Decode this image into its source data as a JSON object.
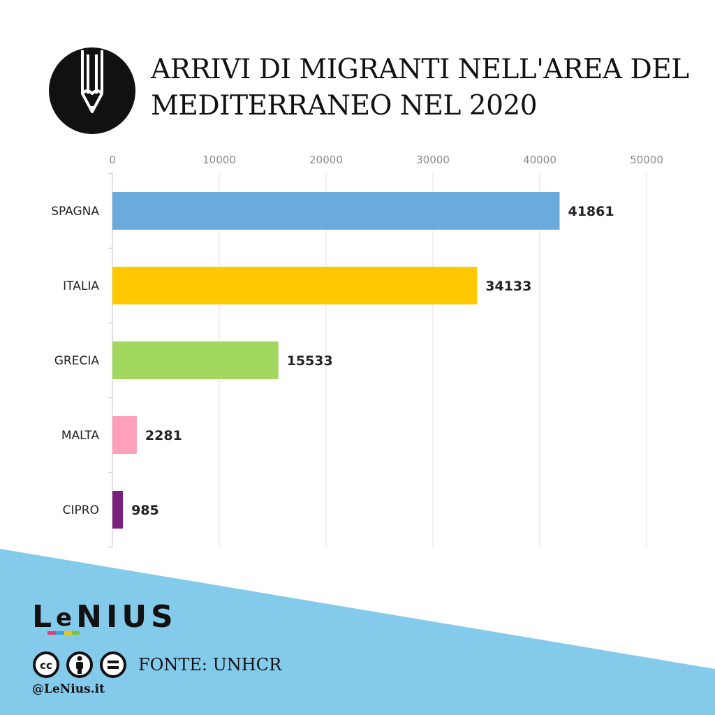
{
  "colors": {
    "background": "#ffffff",
    "wave": "#84cbeb",
    "axis_text": "#8a8a8a",
    "grid": "#e3e3e3",
    "label_text": "#222222"
  },
  "header": {
    "logo_icon": "pencil-icon",
    "title_line1": "ARRIVI DI MIGRANTI NELL'AREA DEL",
    "title_line2": "MEDITERRANEO NEL 2020"
  },
  "chart_data": {
    "type": "bar",
    "orientation": "horizontal",
    "categories": [
      "SPAGNA",
      "ITALIA",
      "GRECIA",
      "MALTA",
      "CIPRO"
    ],
    "values": [
      41861,
      34133,
      15533,
      2281,
      985
    ],
    "colors": [
      "#6aabdc",
      "#ffc800",
      "#a2d860",
      "#ffa0bb",
      "#7a1f7c"
    ],
    "xlim": [
      0,
      50000
    ],
    "xticks": [
      0,
      10000,
      20000,
      30000,
      40000,
      50000
    ],
    "tick_position": "top",
    "grid": true,
    "data_labels": [
      "41861",
      "34133",
      "15533",
      "2281",
      "985"
    ]
  },
  "footer": {
    "brand": "LENIUS",
    "license_icons": [
      "cc-icon",
      "by-icon",
      "nd-icon"
    ],
    "source": "FONTE: UNHCR",
    "handle": "@LeNius.it"
  }
}
